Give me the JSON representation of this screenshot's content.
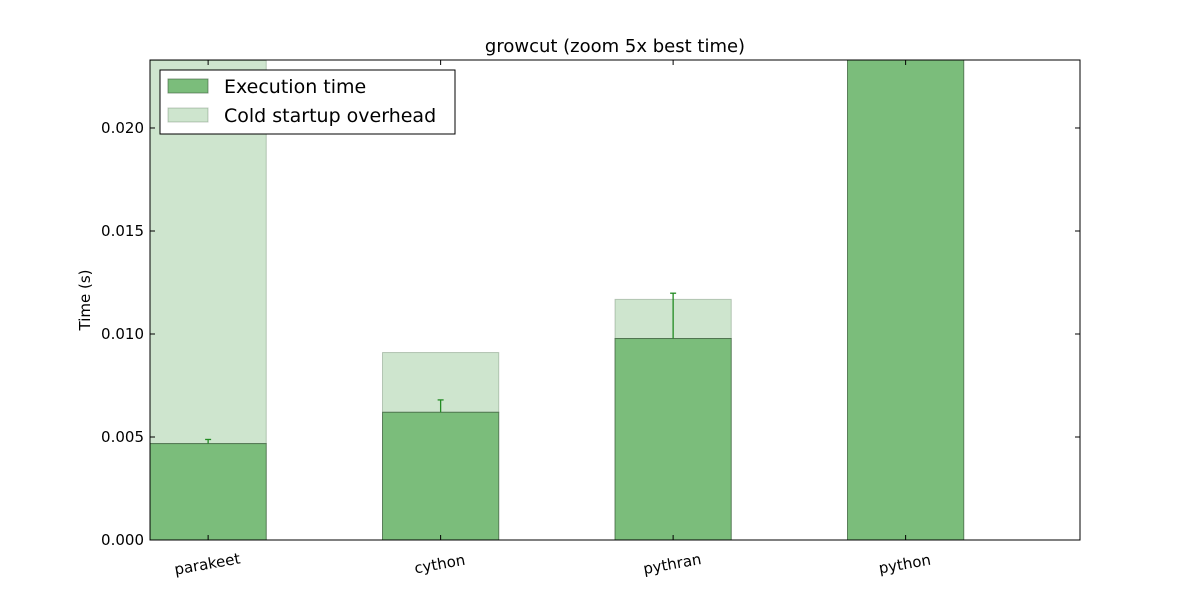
{
  "chart_data": {
    "type": "bar",
    "title": "growcut (zoom 5x best time)",
    "xlabel": "",
    "ylabel": "Time (s)",
    "ylim": [
      0,
      0.0233
    ],
    "yticks": [
      "0.000",
      "0.005",
      "0.010",
      "0.015",
      "0.020"
    ],
    "categories": [
      "parakeet",
      "cython",
      "pythran",
      "python"
    ],
    "series": [
      {
        "name": "Execution time",
        "values": [
          0.00468,
          0.0062,
          0.00978,
          0.0233
        ],
        "errors": [
          0.0002,
          0.0006,
          0.0022,
          0
        ],
        "color": "#7bbd7b"
      },
      {
        "name": "Cold startup overhead",
        "values": [
          0.0186,
          0.0029,
          0.0019,
          0
        ],
        "color": "#cee5ce"
      }
    ],
    "legend": "top-left",
    "grid": false,
    "error_color": "#228b22"
  }
}
